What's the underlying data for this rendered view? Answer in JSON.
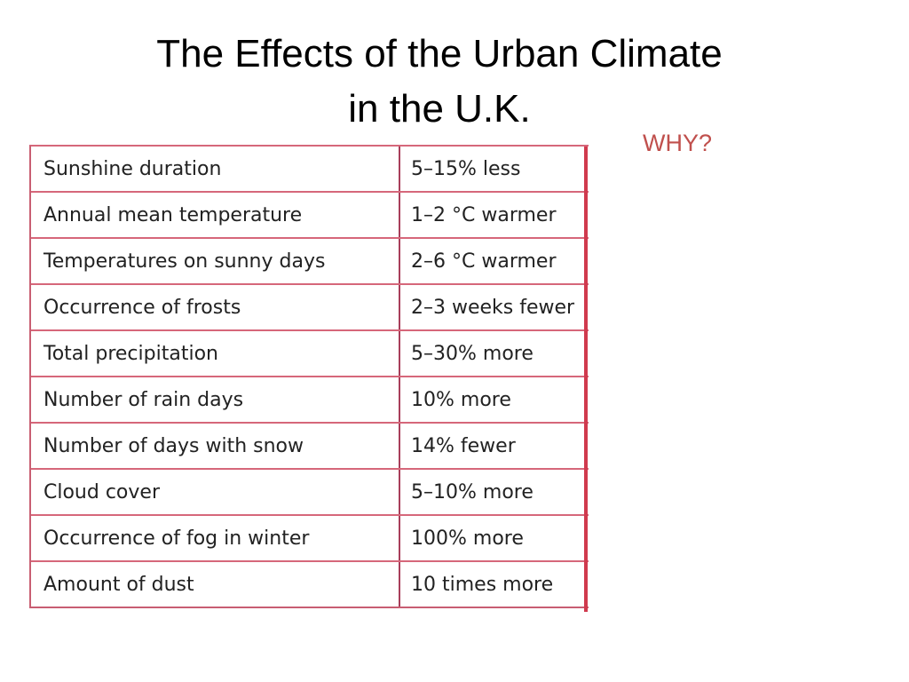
{
  "slide": {
    "title_line1": "The Effects of the Urban Climate",
    "title_line2": "in the U.K.",
    "side_note": "WHY?",
    "side_note_color": "#c0504d"
  },
  "table": {
    "border_color": "#d6677a",
    "rows": [
      {
        "property": "Sunshine duration",
        "effect": "5–15% less"
      },
      {
        "property": "Annual mean temperature",
        "effect": "1–2 °C warmer"
      },
      {
        "property": "Temperatures on sunny days",
        "effect": "2–6 °C warmer"
      },
      {
        "property": "Occurrence of frosts",
        "effect": "2–3 weeks fewer"
      },
      {
        "property": "Total precipitation",
        "effect": "5–30% more"
      },
      {
        "property": "Number of rain days",
        "effect": "10% more"
      },
      {
        "property": "Number of days with snow",
        "effect": "14% fewer"
      },
      {
        "property": "Cloud cover",
        "effect": "5–10% more"
      },
      {
        "property": "Occurrence of fog in winter",
        "effect": "100% more"
      },
      {
        "property": "Amount of dust",
        "effect": "10 times more"
      }
    ]
  }
}
